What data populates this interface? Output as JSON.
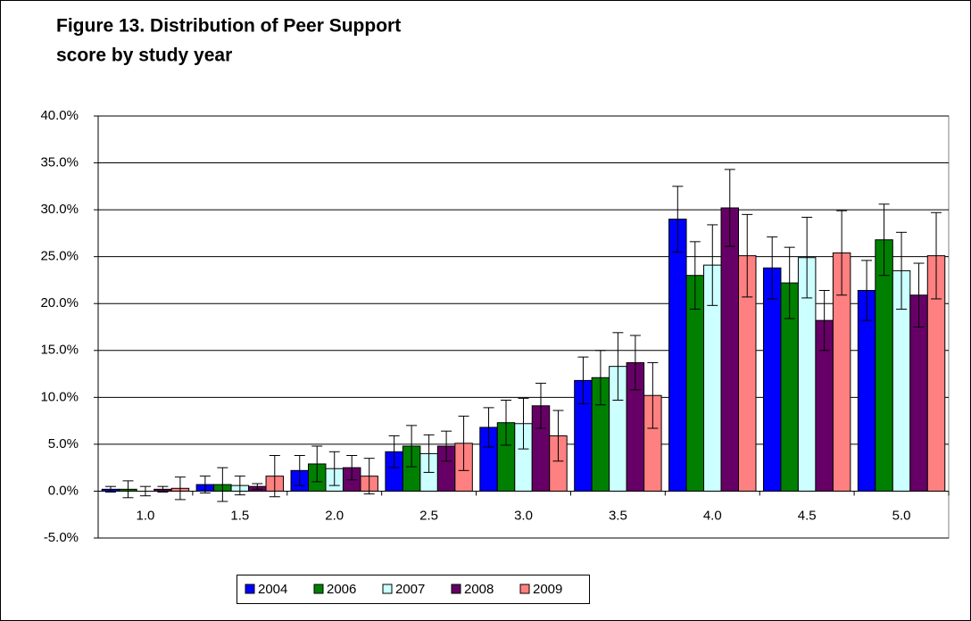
{
  "chart_data": {
    "type": "bar",
    "title": "Figure 13. Distribution of Peer Support",
    "subtitle": "score by study year",
    "categories": [
      "1.0",
      "1.5",
      "2.0",
      "2.5",
      "3.0",
      "3.5",
      "4.0",
      "4.5",
      "5.0"
    ],
    "series": [
      {
        "name": "2004",
        "color": "#0000ff",
        "values": [
          0.2,
          0.7,
          2.2,
          4.2,
          6.8,
          11.8,
          29.0,
          23.8,
          21.4
        ],
        "errors": [
          0.3,
          0.9,
          1.6,
          1.7,
          2.1,
          2.5,
          3.5,
          3.3,
          3.2
        ]
      },
      {
        "name": "2006",
        "color": "#008000",
        "values": [
          0.2,
          0.7,
          2.9,
          4.8,
          7.3,
          12.1,
          23.0,
          22.2,
          26.8
        ],
        "errors": [
          0.9,
          1.8,
          1.9,
          2.2,
          2.4,
          2.9,
          3.6,
          3.8,
          3.8
        ]
      },
      {
        "name": "2007",
        "color": "#ccffff",
        "values": [
          0.0,
          0.6,
          2.4,
          4.0,
          7.2,
          13.3,
          24.1,
          24.9,
          23.5
        ],
        "errors": [
          0.5,
          1.0,
          1.8,
          2.0,
          2.7,
          3.6,
          4.3,
          4.3,
          4.1
        ]
      },
      {
        "name": "2008",
        "color": "#660066",
        "values": [
          0.2,
          0.5,
          2.5,
          4.8,
          9.1,
          13.7,
          30.2,
          18.2,
          20.9
        ],
        "errors": [
          0.3,
          0.3,
          1.3,
          1.6,
          2.4,
          2.9,
          4.1,
          3.2,
          3.4
        ]
      },
      {
        "name": "2009",
        "color": "#ff8080",
        "values": [
          0.3,
          1.6,
          1.6,
          5.1,
          5.9,
          10.2,
          25.1,
          25.4,
          25.1
        ],
        "errors": [
          1.2,
          2.2,
          1.9,
          2.9,
          2.7,
          3.5,
          4.4,
          4.5,
          4.6
        ]
      }
    ],
    "ylim": [
      -5,
      40
    ],
    "yticks": [
      {
        "value": -5,
        "label": "-5.0%"
      },
      {
        "value": 0,
        "label": "0.0%"
      },
      {
        "value": 5,
        "label": "5.0%"
      },
      {
        "value": 10,
        "label": "10.0%"
      },
      {
        "value": 15,
        "label": "15.0%"
      },
      {
        "value": 20,
        "label": "20.0%"
      },
      {
        "value": 25,
        "label": "25.0%"
      },
      {
        "value": 30,
        "label": "30.0%"
      },
      {
        "value": 35,
        "label": "35.0%"
      },
      {
        "value": 40,
        "label": "40.0%"
      }
    ],
    "grid": true
  }
}
